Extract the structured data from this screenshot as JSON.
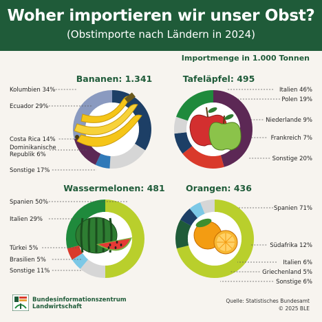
{
  "title": "Woher importieren wir unser Obst?",
  "subtitle": "(Obstimporte nach Ländern in 2024)",
  "unit_label": "Importmenge in 1.000 Tonnen",
  "footer": {
    "org_line1": "Bundesinformationszentrum",
    "org_line2": "Landwirtschaft",
    "source": "Quelle: Statistisches Bundesamt",
    "copyright": "© 2025 BLE"
  },
  "colors": {
    "header": "#1f5b39",
    "background": "#f7f4ef",
    "title_text": "#1f5b39"
  },
  "icons": [
    "banana-icon",
    "apple-icon",
    "watermelon-icon",
    "orange-icon",
    "ble-logo-icon"
  ],
  "chart_data": [
    {
      "type": "pie",
      "title": "Bananen: 1.341",
      "fruit": "banana",
      "total": 1341,
      "slices": [
        {
          "label": "Kolumbien 34%",
          "value": 34,
          "color": "#1d3f66",
          "side": "left"
        },
        {
          "label": "Sonstige 17%",
          "value": 17,
          "color": "#d6d6d6",
          "side": "left"
        },
        {
          "label": "Dominikanische Republik 6%",
          "value": 6,
          "color": "#3079b8",
          "side": "left"
        },
        {
          "label": "Costa Rica 14%",
          "value": 14,
          "color": "#5c2855",
          "side": "left"
        },
        {
          "label": "Ecuador 29%",
          "value": 29,
          "color": "#8a9ac0",
          "side": "left"
        }
      ]
    },
    {
      "type": "pie",
      "title": "Tafeläpfel: 495",
      "fruit": "apple",
      "total": 495,
      "slices": [
        {
          "label": "Italien 46%",
          "value": 46,
          "color": "#5c2855",
          "side": "right"
        },
        {
          "label": "Polen 19%",
          "value": 19,
          "color": "#d93a2b",
          "side": "right"
        },
        {
          "label": "Niederlande 9%",
          "value": 9,
          "color": "#1d3f66",
          "side": "right"
        },
        {
          "label": "Frankreich 7%",
          "value": 7,
          "color": "#d6d6d6",
          "side": "right"
        },
        {
          "label": "Sonstige 20%",
          "value": 20,
          "color": "#1f8a3c",
          "side": "right"
        }
      ]
    },
    {
      "type": "pie",
      "title": "Wassermelonen: 481",
      "fruit": "watermelon",
      "total": 481,
      "slices": [
        {
          "label": "Spanien 50%",
          "value": 50,
          "color": "#b9cf2c",
          "side": "left"
        },
        {
          "label": "Sonstige 11%",
          "value": 11,
          "color": "#d6d6d6",
          "side": "left"
        },
        {
          "label": "Brasilien 5%",
          "value": 5,
          "color": "#7cc8e6",
          "side": "left"
        },
        {
          "label": "Türkei 5%",
          "value": 5,
          "color": "#d93a2b",
          "side": "left"
        },
        {
          "label": "Italien 29%",
          "value": 29,
          "color": "#1f8a3c",
          "side": "left"
        }
      ]
    },
    {
      "type": "pie",
      "title": "Orangen: 436",
      "fruit": "orange",
      "total": 436,
      "slices": [
        {
          "label": "Spanien 71%",
          "value": 71,
          "color": "#b9cf2c",
          "side": "right"
        },
        {
          "label": "Südafrika 12%",
          "value": 12,
          "color": "#1f5b39",
          "side": "right"
        },
        {
          "label": "Italien 6%",
          "value": 6,
          "color": "#1d3f66",
          "side": "right"
        },
        {
          "label": "Griechenland 5%",
          "value": 5,
          "color": "#7cc8e6",
          "side": "right"
        },
        {
          "label": "Sonstige 6%",
          "value": 6,
          "color": "#d6d6d6",
          "side": "right"
        }
      ]
    }
  ]
}
